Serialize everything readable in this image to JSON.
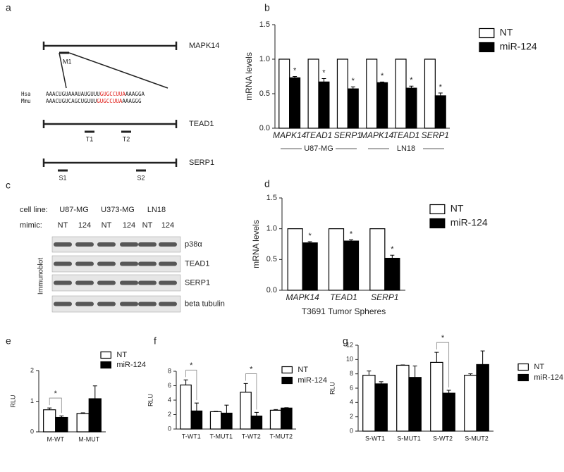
{
  "panel_a": {
    "label": "a",
    "genes": [
      {
        "name": "MAPK14",
        "sites": [
          "M1"
        ]
      },
      {
        "name": "TEAD1",
        "sites": [
          "T1",
          "T2"
        ]
      },
      {
        "name": "SERP1",
        "sites": [
          "S1",
          "S2"
        ]
      }
    ],
    "alignment": [
      {
        "species": "Hsa",
        "seq5": "AAACUGUAAAUAUGUUU",
        "site": "GUGCCUUA",
        "seq3": "AAAGGA"
      },
      {
        "species": "Mmu",
        "seq5": "AAACUGUCAGCUGUUU",
        "site": "GUGCCUUA",
        "seq3": "AAAGGG"
      }
    ]
  },
  "panel_c": {
    "label": "c",
    "row_labels": [
      "cell line:",
      "mimic:"
    ],
    "cell_lines": [
      "U87-MG",
      "U373-MG",
      "LN18"
    ],
    "mimics": [
      "NT",
      "124",
      "NT",
      "124",
      "NT",
      "124"
    ],
    "side_label": "Immunoblot",
    "bands": [
      "p38α",
      "TEAD1",
      "SERP1",
      "beta tubulin"
    ]
  },
  "chart_data": [
    {
      "type": "bar",
      "panel": "b",
      "y_label": "mRNA levels",
      "italic_categories": true,
      "categories": [
        "MAPK14",
        "TEAD1",
        "SERP1",
        "MAPK14",
        "TEAD1",
        "SERP1"
      ],
      "groups": [
        "U87-MG",
        "LN18"
      ],
      "series": [
        {
          "name": "NT",
          "color": "#ffffff",
          "values": [
            1,
            1,
            1,
            1,
            1,
            1
          ],
          "errors": [
            0,
            0,
            0,
            0,
            0,
            0
          ]
        },
        {
          "name": "miR-124",
          "color": "#000000",
          "values": [
            0.73,
            0.67,
            0.57,
            0.66,
            0.58,
            0.47
          ],
          "errors": [
            0.02,
            0.05,
            0.03,
            0.01,
            0.03,
            0.04
          ]
        }
      ],
      "ylim": [
        0,
        1.5
      ],
      "yticks": [
        {
          "value": 0,
          "label": "0.0"
        },
        {
          "value": 0.5,
          "label": "0.5"
        },
        {
          "value": 1,
          "label": "1.0"
        },
        {
          "value": 1.5,
          "label": "1.5"
        }
      ],
      "annotation": "*",
      "significant": [
        0,
        1,
        2,
        3,
        4,
        5
      ],
      "bracket": false
    },
    {
      "type": "bar",
      "panel": "d",
      "y_label": "mRNA levels",
      "x_label": "T3691 Tumor Spheres",
      "italic_categories": true,
      "categories": [
        "MAPK14",
        "TEAD1",
        "SERP1"
      ],
      "series": [
        {
          "name": "NT",
          "color": "#ffffff",
          "values": [
            1,
            1,
            1
          ],
          "errors": [
            0,
            0,
            0
          ]
        },
        {
          "name": "miR-124",
          "color": "#000000",
          "values": [
            0.77,
            0.8,
            0.52
          ],
          "errors": [
            0.02,
            0.02,
            0.05
          ]
        }
      ],
      "ylim": [
        0,
        1.5
      ],
      "yticks": [
        {
          "value": 0,
          "label": "0.0"
        },
        {
          "value": 0.5,
          "label": "0.5"
        },
        {
          "value": 1,
          "label": "1.0"
        },
        {
          "value": 1.5,
          "label": "1.5"
        }
      ],
      "annotation": "*",
      "significant": [
        0,
        1,
        2
      ],
      "bracket": false
    },
    {
      "type": "bar",
      "panel": "e",
      "y_label": "RLU",
      "italic_categories": false,
      "categories": [
        "M-WT",
        "M-MUT"
      ],
      "series": [
        {
          "name": "NT",
          "color": "#ffffff",
          "values": [
            0.72,
            0.6
          ],
          "errors": [
            0.06,
            0.02
          ]
        },
        {
          "name": "miR-124",
          "color": "#000000",
          "values": [
            0.47,
            1.08
          ],
          "errors": [
            0.05,
            0.42
          ]
        }
      ],
      "ylim": [
        0,
        2
      ],
      "yticks": [
        0,
        1,
        2
      ],
      "annotation": "*",
      "significant": [
        0
      ],
      "bracket": true
    },
    {
      "type": "bar",
      "panel": "f",
      "y_label": "RLU",
      "italic_categories": false,
      "categories": [
        "T-WT1",
        "T-MUT1",
        "T-WT2",
        "T-MUT2"
      ],
      "series": [
        {
          "name": "NT",
          "color": "#ffffff",
          "values": [
            6.1,
            2.4,
            5.1,
            2.6
          ],
          "errors": [
            0.7,
            0.05,
            1.2,
            0.1
          ]
        },
        {
          "name": "miR-124",
          "color": "#000000",
          "values": [
            2.5,
            2.2,
            1.8,
            2.9
          ],
          "errors": [
            1.1,
            1.1,
            0.5,
            0.05
          ]
        }
      ],
      "ylim": [
        0,
        8
      ],
      "yticks": [
        0,
        2,
        4,
        6,
        8
      ],
      "annotation": "*",
      "significant": [
        0,
        2
      ],
      "bracket": true
    },
    {
      "type": "bar",
      "panel": "g",
      "y_label": "RLU",
      "italic_categories": false,
      "categories": [
        "S-WT1",
        "S-MUT1",
        "S-WT2",
        "S-MUT2"
      ],
      "series": [
        {
          "name": "NT",
          "color": "#ffffff",
          "values": [
            7.8,
            9.2,
            9.6,
            7.8
          ],
          "errors": [
            0.6,
            0.05,
            1.4,
            0.2
          ]
        },
        {
          "name": "miR-124",
          "color": "#000000",
          "values": [
            6.6,
            7.5,
            5.3,
            9.3
          ],
          "errors": [
            0.3,
            1.6,
            0.4,
            1.9
          ]
        }
      ],
      "ylim": [
        0,
        12
      ],
      "yticks": [
        0,
        2,
        4,
        6,
        8,
        10,
        12
      ],
      "annotation": "*",
      "significant": [
        2
      ],
      "bracket": true
    }
  ]
}
